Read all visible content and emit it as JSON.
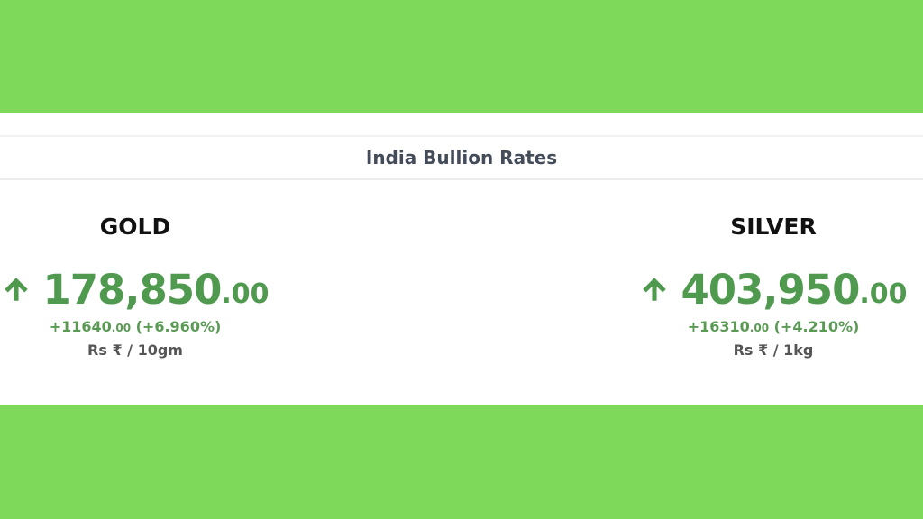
{
  "header": {
    "title": "India Bullion Rates"
  },
  "colors": {
    "background": "#7ed95a",
    "up": "#4f9a4f"
  },
  "rates": [
    {
      "metal": "GOLD",
      "trend_icon": "arrow-up-icon",
      "price_int": "178,850",
      "price_dec": ".00",
      "change_int": "+11640",
      "change_dec": ".00",
      "change_pct": " (+6.960%)",
      "unit": "Rs ₹ / 10gm"
    },
    {
      "metal": "SILVER",
      "trend_icon": "arrow-up-icon",
      "price_int": "403,950",
      "price_dec": ".00",
      "change_int": "+16310",
      "change_dec": ".00",
      "change_pct": " (+4.210%)",
      "unit": "Rs ₹ / 1kg"
    }
  ]
}
